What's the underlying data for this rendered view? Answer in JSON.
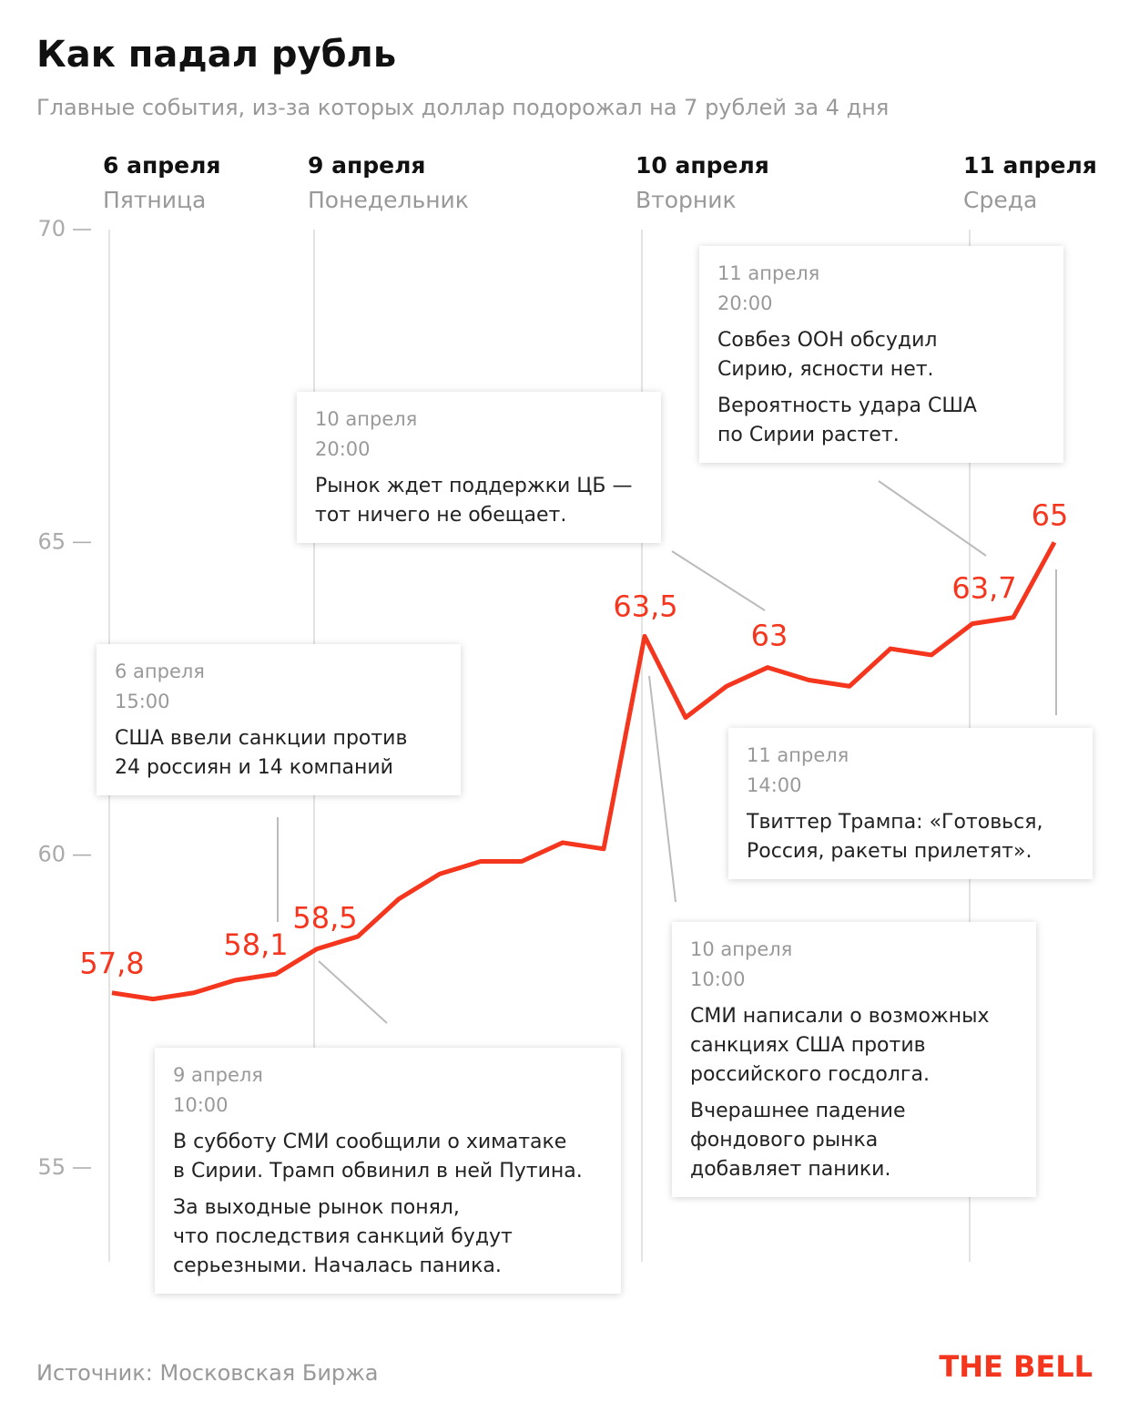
{
  "chart_data": {
    "type": "line",
    "title": "Как падал рубль",
    "subtitle": "Главные события, из-за которых доллар подорожал на 7 рублей за 4 дня",
    "categories": [
      "6 апреля",
      null,
      null,
      null,
      null,
      "9 апреля",
      null,
      null,
      null,
      null,
      null,
      null,
      null,
      "10 апреля",
      null,
      null,
      null,
      null,
      null,
      null,
      null,
      "11 апреля",
      null,
      null
    ],
    "weekdays": [
      "Пятница",
      null,
      null,
      null,
      null,
      "Понедельник",
      null,
      null,
      null,
      null,
      null,
      null,
      null,
      "Вторник",
      null,
      null,
      null,
      null,
      null,
      null,
      null,
      "Среда",
      null,
      null
    ],
    "values": [
      57.8,
      57.7,
      57.8,
      58.0,
      58.1,
      58.5,
      58.7,
      59.3,
      59.7,
      59.9,
      59.9,
      60.2,
      60.1,
      63.5,
      62.2,
      62.7,
      63.0,
      62.8,
      62.7,
      63.3,
      63.2,
      63.7,
      63.8,
      65.0
    ],
    "value_labels": [
      "57,8",
      null,
      null,
      null,
      "58,1",
      "58,5",
      null,
      null,
      null,
      null,
      null,
      null,
      null,
      "63,5",
      null,
      null,
      "63",
      null,
      null,
      null,
      null,
      "63,7",
      null,
      "65"
    ],
    "color": "#f4361e",
    "ylim": [
      53.5,
      70
    ],
    "yticks": [
      55,
      60,
      65,
      70
    ],
    "grid": true,
    "annotations": [
      {
        "date": "6 апреля",
        "time": "15:00",
        "text": [
          [
            "США ввели санкции против",
            "24 россиян и 14 компаний"
          ]
        ]
      },
      {
        "date": "9 апреля",
        "time": "10:00",
        "text": [
          [
            "В субботу СМИ сообщили о химатаке",
            "в Сирии. Трамп обвинил в ней Путина."
          ],
          [
            "За выходные рынок понял,",
            "что последствия санкций будут",
            "серьезными. Началась паника."
          ]
        ]
      },
      {
        "date": "10 апреля",
        "time": "20:00",
        "text": [
          [
            "Рынок ждет поддержки ЦБ —",
            "тот ничего не обещает."
          ]
        ]
      },
      {
        "date": "10 апреля",
        "time": "10:00",
        "text": [
          [
            "СМИ написали о возможных",
            "санкциях США против",
            "российского госдолга."
          ],
          [
            "Вчерашнее падение",
            "фондового рынка",
            "добавляет паники."
          ]
        ]
      },
      {
        "date": "11 апреля",
        "time": "20:00",
        "text": [
          [
            "Совбез ООН обсудил",
            "Сирию, ясности нет."
          ],
          [
            "Вероятность удара США",
            "по Сирии растет."
          ]
        ]
      },
      {
        "date": "11 апреля",
        "time": "14:00",
        "text": [
          [
            "Твиттер Трампа: «Готовься,",
            "Россия, ракеты прилетят»."
          ]
        ]
      }
    ],
    "source": "Источник: Московская Биржа",
    "logo": "THE BELL"
  }
}
